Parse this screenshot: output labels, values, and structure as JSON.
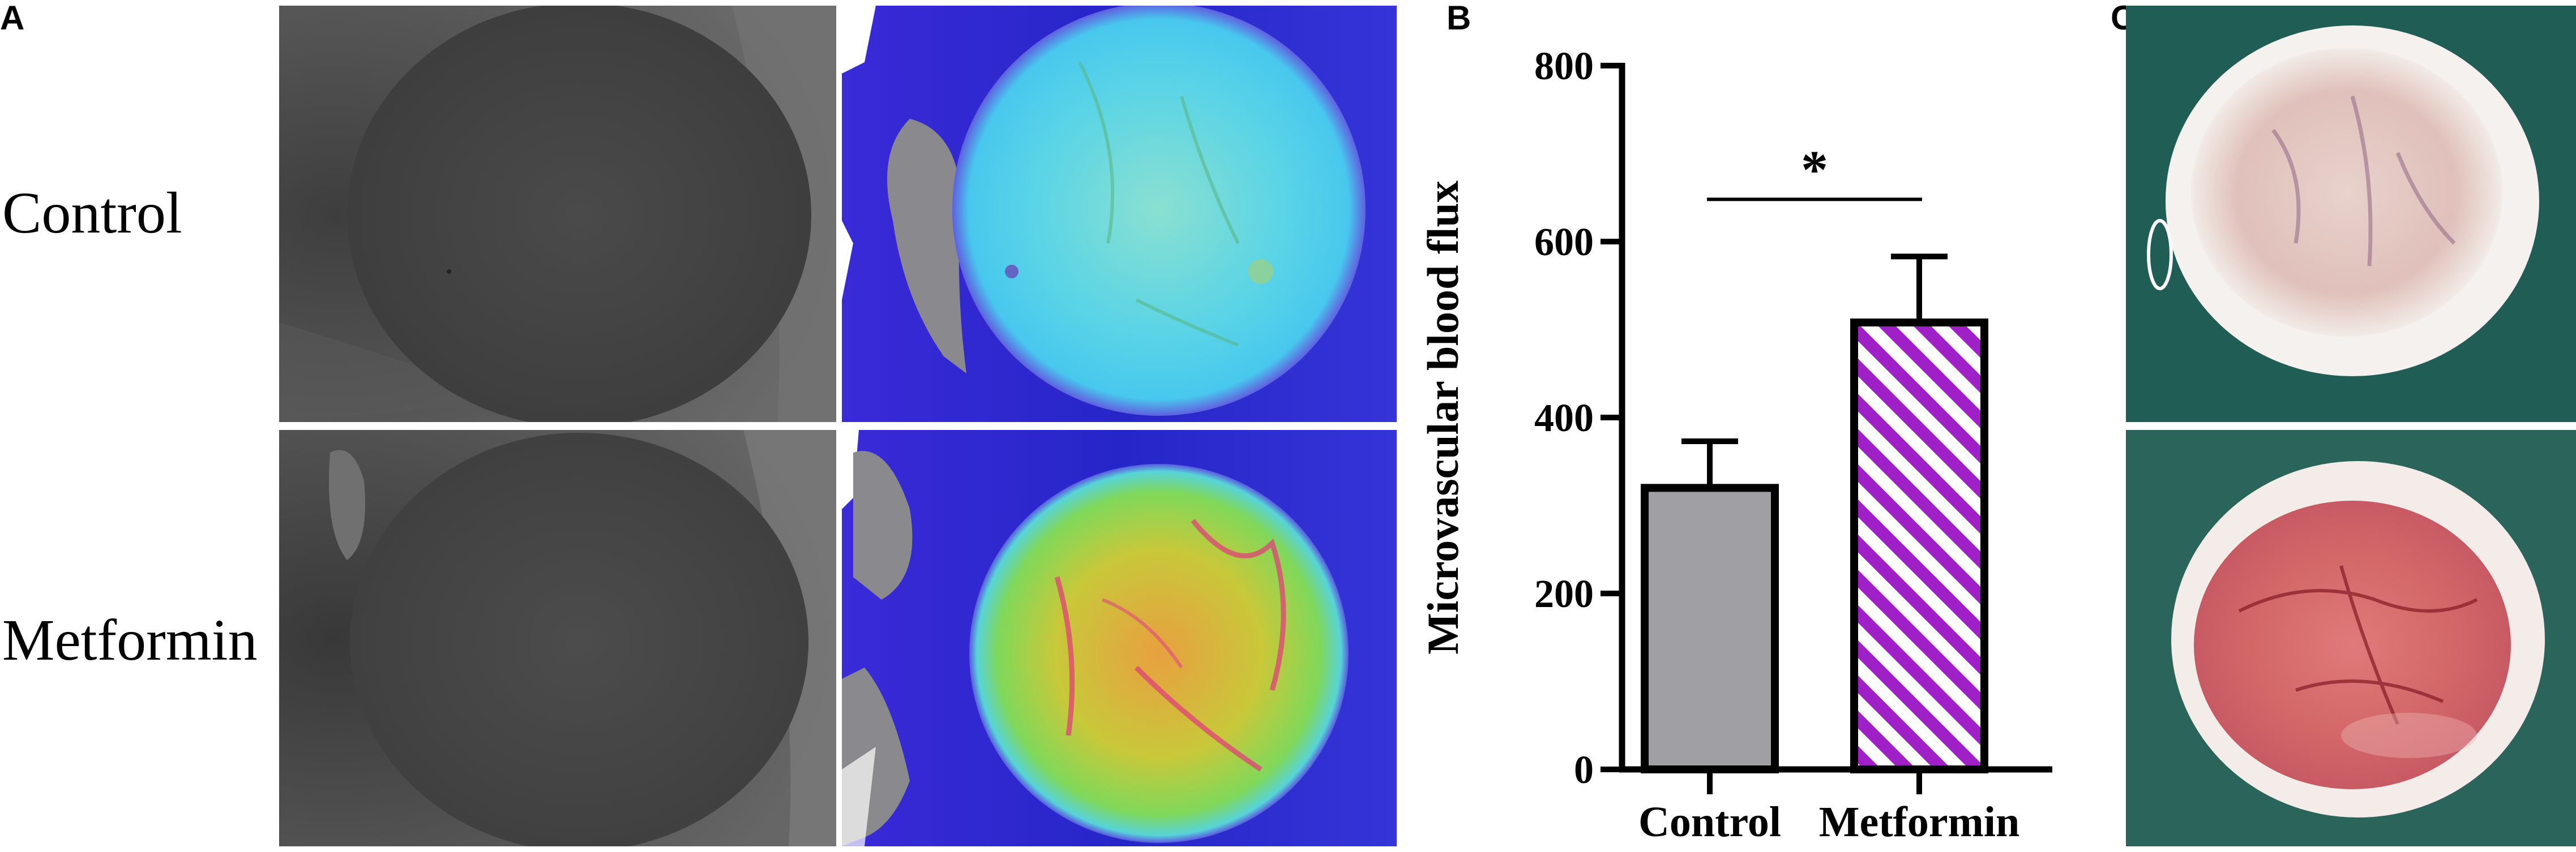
{
  "panels": {
    "a_letter": "A",
    "b_letter": "B",
    "c_letter": "C",
    "a_rows": [
      {
        "label": "Control"
      },
      {
        "label": "Metformin"
      }
    ]
  },
  "images": {
    "grayscale": "grayscale-eye-photo",
    "perfusion": "laser-doppler-perfusion-map",
    "tissue": "skin-flap-tissue-photo"
  },
  "colors": {
    "control_bar": "#a0a0a4",
    "metformin_stripe": "#a020c8",
    "perfusion_control": "#54d8e0",
    "perfusion_metformin": "#d8c040",
    "background_blue": "#2a2ad0"
  },
  "chart_data": {
    "type": "bar",
    "categories": [
      "Control",
      "Metformin"
    ],
    "values": [
      320,
      508
    ],
    "errors": [
      53,
      75
    ],
    "ylabel": "Microvascular blood flux",
    "xlabel": "",
    "ylim": [
      0,
      800
    ],
    "yticks": [
      0,
      200,
      400,
      600,
      800
    ],
    "significance": "*",
    "bar_styles": [
      "solid-gray",
      "purple-diagonal-hatch"
    ],
    "grid": false
  }
}
